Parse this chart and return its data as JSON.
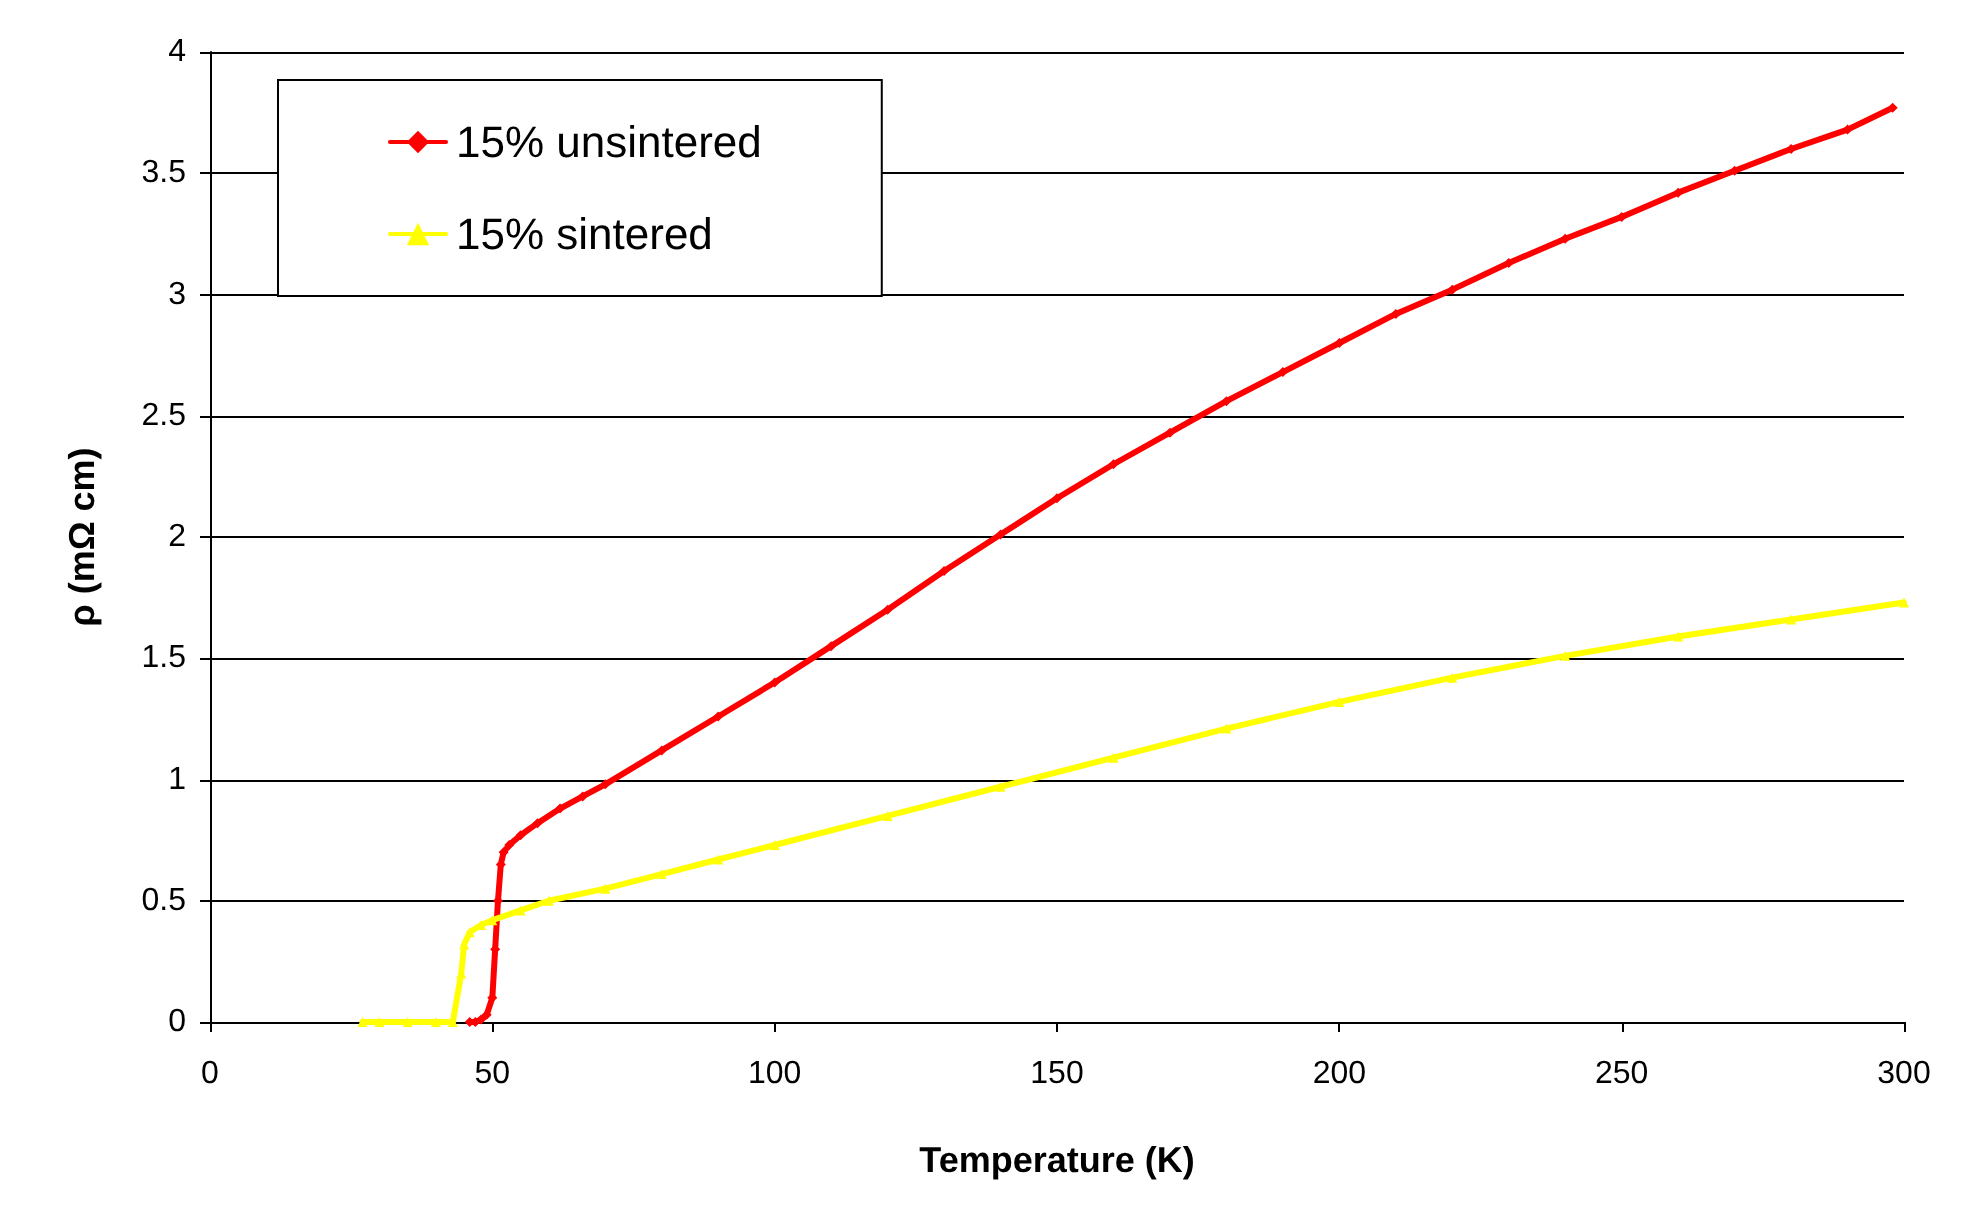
{
  "chart_data": {
    "type": "line",
    "xlabel": "Temperature (K)",
    "ylabel": "ρ (mΩ cm)",
    "xlim": [
      0,
      300
    ],
    "xticks": [
      0,
      50,
      100,
      150,
      200,
      250,
      300
    ],
    "ylim": [
      0,
      4
    ],
    "yticks": [
      0,
      0.5,
      1,
      1.5,
      2,
      2.5,
      3,
      3.5,
      4
    ],
    "grid": "y",
    "legend": "top left",
    "line_style": "solid",
    "series": [
      {
        "name": "15% unsintered",
        "color": "#ff0000",
        "marker": "diamond",
        "x": [
          46,
          47,
          48,
          49,
          50,
          50.5,
          51,
          51.5,
          52,
          53,
          55,
          58,
          62,
          66,
          70,
          80,
          90,
          100,
          110,
          120,
          130,
          140,
          150,
          160,
          170,
          180,
          190,
          200,
          210,
          220,
          230,
          240,
          250,
          260,
          270,
          280,
          290,
          298
        ],
        "values": [
          0,
          0,
          0.01,
          0.03,
          0.1,
          0.3,
          0.5,
          0.65,
          0.7,
          0.73,
          0.77,
          0.82,
          0.88,
          0.93,
          0.98,
          1.12,
          1.26,
          1.4,
          1.55,
          1.7,
          1.86,
          2.01,
          2.16,
          2.3,
          2.43,
          2.56,
          2.68,
          2.8,
          2.92,
          3.02,
          3.13,
          3.23,
          3.32,
          3.42,
          3.51,
          3.6,
          3.68,
          3.77
        ]
      },
      {
        "name": "15% sintered",
        "color": "#ffff00",
        "marker": "triangle",
        "x": [
          27,
          30,
          35,
          40,
          43,
          44.5,
          45,
          46,
          48,
          50,
          55,
          60,
          70,
          80,
          90,
          100,
          120,
          140,
          160,
          180,
          200,
          220,
          240,
          260,
          280,
          300
        ],
        "values": [
          0,
          0,
          0,
          0,
          0,
          0.2,
          0.32,
          0.37,
          0.4,
          0.42,
          0.46,
          0.5,
          0.55,
          0.61,
          0.67,
          0.73,
          0.85,
          0.97,
          1.09,
          1.21,
          1.32,
          1.42,
          1.51,
          1.59,
          1.66,
          1.73
        ]
      }
    ]
  }
}
